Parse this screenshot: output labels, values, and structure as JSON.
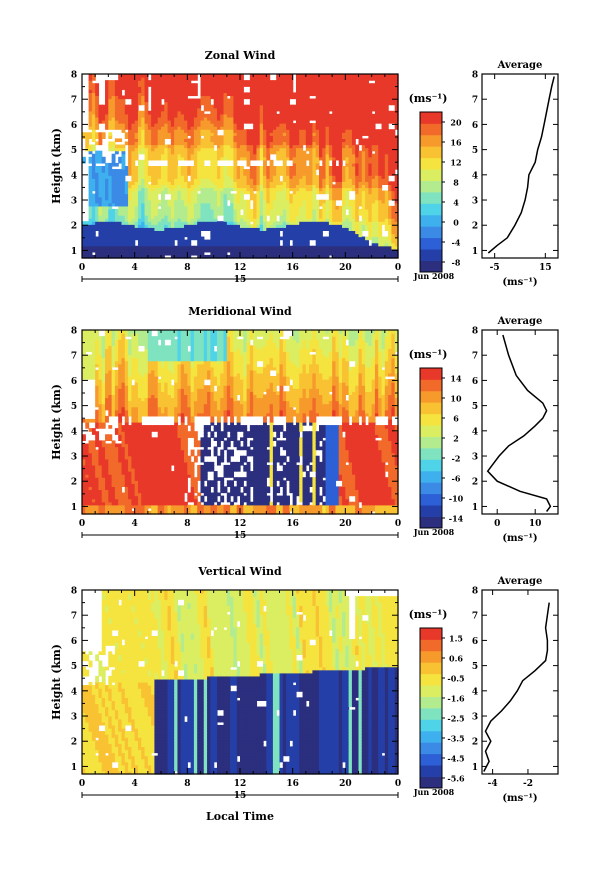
{
  "chart_data": [
    {
      "type": "heatmap",
      "title": "Zonal Wind",
      "ylabel": "Height (km)",
      "xticks": [
        "0",
        "4",
        "8",
        "12",
        "16",
        "20",
        "0"
      ],
      "yticks": [
        "1",
        "2",
        "3",
        "4",
        "5",
        "6",
        "7",
        "8"
      ],
      "ylim": [
        0.7,
        8
      ],
      "xlim": [
        0,
        24
      ],
      "date_marker": "15",
      "date_label": "Jun 2008",
      "colorbar": {
        "unit_label": "(ms⁻¹)",
        "ticks": [
          "20",
          "16",
          "12",
          "8",
          "4",
          "0",
          "-4",
          "-8"
        ],
        "range": [
          -10,
          22
        ]
      },
      "profile": {
        "title": "Average",
        "xticks": [
          "-5",
          "15"
        ],
        "xlabel": "(ms⁻¹)",
        "yticks": [
          "1",
          "2",
          "3",
          "4",
          "5",
          "6",
          "7",
          "8"
        ],
        "xlim": [
          -10,
          20
        ],
        "heights": [
          0.9,
          1.2,
          1.5,
          2.0,
          2.5,
          3.0,
          3.5,
          4.0,
          4.5,
          5.0,
          5.5,
          6.0,
          6.5,
          7.0,
          7.5,
          7.9
        ],
        "values": [
          -7.5,
          -4,
          0,
          3,
          5.5,
          7,
          8,
          8.5,
          11,
          12,
          13.5,
          14.5,
          15.5,
          16.5,
          17.5,
          18.5
        ]
      }
    },
    {
      "type": "heatmap",
      "title": "Meridional Wind",
      "ylabel": "Height (km)",
      "xticks": [
        "0",
        "4",
        "8",
        "12",
        "16",
        "20",
        "0"
      ],
      "yticks": [
        "1",
        "2",
        "3",
        "4",
        "5",
        "6",
        "7",
        "8"
      ],
      "ylim": [
        0.7,
        8
      ],
      "xlim": [
        0,
        24
      ],
      "date_marker": "15",
      "date_label": "Jun 2008",
      "colorbar": {
        "unit_label": "(ms⁻¹)",
        "ticks": [
          "14",
          "10",
          "6",
          "2",
          "-2",
          "-6",
          "-10",
          "-14"
        ],
        "range": [
          -16,
          16
        ]
      },
      "profile": {
        "title": "Average",
        "xticks": [
          "0",
          "10"
        ],
        "xlabel": "(ms⁻¹)",
        "yticks": [
          "1",
          "2",
          "3",
          "4",
          "5",
          "6",
          "7",
          "8"
        ],
        "xlim": [
          -4,
          16
        ],
        "heights": [
          0.8,
          1.0,
          1.3,
          1.6,
          2.0,
          2.4,
          2.7,
          3.0,
          3.4,
          3.8,
          4.2,
          4.5,
          4.8,
          5.1,
          5.6,
          6.2,
          7.0,
          7.8
        ],
        "values": [
          13,
          14,
          13,
          6,
          0,
          -2.5,
          -1,
          0.5,
          3,
          7,
          10,
          12,
          13,
          12,
          8,
          5,
          3,
          1.5
        ]
      }
    },
    {
      "type": "heatmap",
      "title": "Vertical Wind",
      "ylabel": "Height (km)",
      "xlabel": "Local Time",
      "xticks": [
        "0",
        "4",
        "8",
        "12",
        "16",
        "20",
        "0"
      ],
      "yticks": [
        "1",
        "2",
        "3",
        "4",
        "5",
        "6",
        "7",
        "8"
      ],
      "ylim": [
        0.7,
        8
      ],
      "xlim": [
        0,
        24
      ],
      "date_marker": "15",
      "date_label": "Jun 2008",
      "colorbar": {
        "unit_label": "(ms⁻¹)",
        "ticks": [
          "1.5",
          "0.6",
          "-0.5",
          "-1.6",
          "-2.5",
          "-3.5",
          "-4.5",
          "-5.6"
        ],
        "range": [
          -6,
          2
        ]
      },
      "profile": {
        "title": "Average",
        "xticks": [
          "-4",
          "-2"
        ],
        "xlabel": "(ms⁻¹)",
        "yticks": [
          "1",
          "2",
          "3",
          "4",
          "5",
          "6",
          "7",
          "8"
        ],
        "xlim": [
          -4.6,
          -0.3
        ],
        "heights": [
          0.8,
          1.2,
          1.6,
          2.0,
          2.4,
          2.8,
          3.2,
          3.6,
          4.0,
          4.4,
          4.8,
          5.2,
          5.6,
          6.0,
          6.5,
          7.0,
          7.5
        ],
        "values": [
          -4.5,
          -4.2,
          -4.4,
          -4.1,
          -4.4,
          -4.1,
          -3.5,
          -3.0,
          -2.6,
          -2.3,
          -1.6,
          -1.0,
          -0.9,
          -0.9,
          -1.0,
          -0.9,
          -0.8
        ]
      }
    }
  ]
}
